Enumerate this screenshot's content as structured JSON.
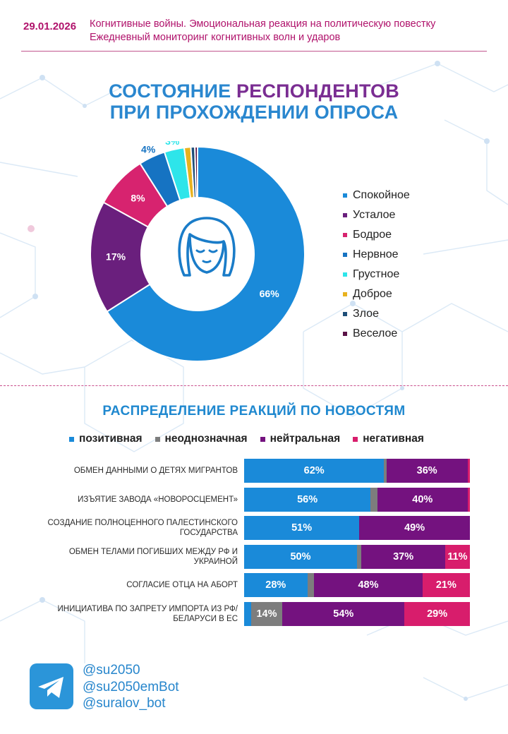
{
  "header": {
    "date": "29.01.2026",
    "line1": "Когнитивные войны. Эмоциональная реакция на политическую повестку",
    "line2": "Ежедневный мониторинг когнитивных волн и ударов"
  },
  "donut_title": {
    "line1_part1": "СОСТОЯНИЕ ",
    "line1_part2": "РЕСПОНДЕНТОВ",
    "line2": "ПРИ ПРОХОЖДЕНИИ ОПРОСА"
  },
  "bars_title": "РАСПРЕДЕЛЕНИЕ РЕАКЦИЙ ПО НОВОСТЯМ",
  "contacts": [
    "@su2050",
    "@su2050emBot",
    "@suralov_bot"
  ],
  "icons": {
    "telegram": "telegram-icon",
    "center": "sleepy-face-icon"
  },
  "colors": {
    "accent": "#b0126b",
    "blue": "#1f88cf",
    "purple": "#7a2d92"
  },
  "chart_data": [
    {
      "type": "pie",
      "title": "СОСТОЯНИЕ РЕСПОНДЕНТОВ ПРИ ПРОХОЖДЕНИИ ОПРОСА",
      "donut": true,
      "legend": "right",
      "slices": [
        {
          "name": "Спокойное",
          "value": 66,
          "label": "66%",
          "color": "#1a8ad9"
        },
        {
          "name": "Усталое",
          "value": 17,
          "label": "17%",
          "color": "#6a1f7d"
        },
        {
          "name": "Бодрое",
          "value": 8,
          "label": "8%",
          "color": "#d7236f"
        },
        {
          "name": "Нервное",
          "value": 4,
          "label": "4%",
          "color": "#1673c2"
        },
        {
          "name": "Грустное",
          "value": 3,
          "label": "3%",
          "color": "#2ee5ea"
        },
        {
          "name": "Доброе",
          "value": 1,
          "label": "",
          "color": "#e8b21e"
        },
        {
          "name": "Злое",
          "value": 0.6,
          "label": "",
          "color": "#1e4e78"
        },
        {
          "name": "Веселое",
          "value": 0.4,
          "label": "",
          "color": "#5a1246"
        }
      ]
    },
    {
      "type": "bar",
      "orientation": "horizontal",
      "stacked": true,
      "title": "РАСПРЕДЕЛЕНИЕ РЕАКЦИЙ ПО НОВОСТЯМ",
      "legend": "top",
      "series": [
        {
          "name": "позитивная",
          "color": "#1a8ad9"
        },
        {
          "name": "неоднозначная",
          "color": "#7d7d7d"
        },
        {
          "name": "нейтральная",
          "color": "#74127f"
        },
        {
          "name": "негативная",
          "color": "#d81d6c"
        }
      ],
      "categories": [
        "Обмен данными о детях мигрантов",
        "Изъятие завода «Новоросцемент»",
        "Создание полноценного палестинского государства",
        "Обмен телами погибших между РФ и Украиной",
        "Согласие отца на аборт",
        "Инициатива по запрету импорта из РФ/Беларуси в ЕС"
      ],
      "values": [
        [
          62,
          1,
          36,
          1
        ],
        [
          56,
          3,
          40,
          1
        ],
        [
          51,
          0,
          49,
          0
        ],
        [
          50,
          2,
          37,
          11
        ],
        [
          28,
          3,
          48,
          21
        ],
        [
          3,
          14,
          54,
          29
        ]
      ],
      "labels": [
        [
          "62%",
          "",
          "36%",
          ""
        ],
        [
          "56%",
          "",
          "40%",
          ""
        ],
        [
          "51%",
          "",
          "49%",
          ""
        ],
        [
          "50%",
          "",
          "37%",
          "11%"
        ],
        [
          "28%",
          "",
          "48%",
          "21%"
        ],
        [
          "",
          "14%",
          "54%",
          "29%"
        ]
      ]
    }
  ]
}
